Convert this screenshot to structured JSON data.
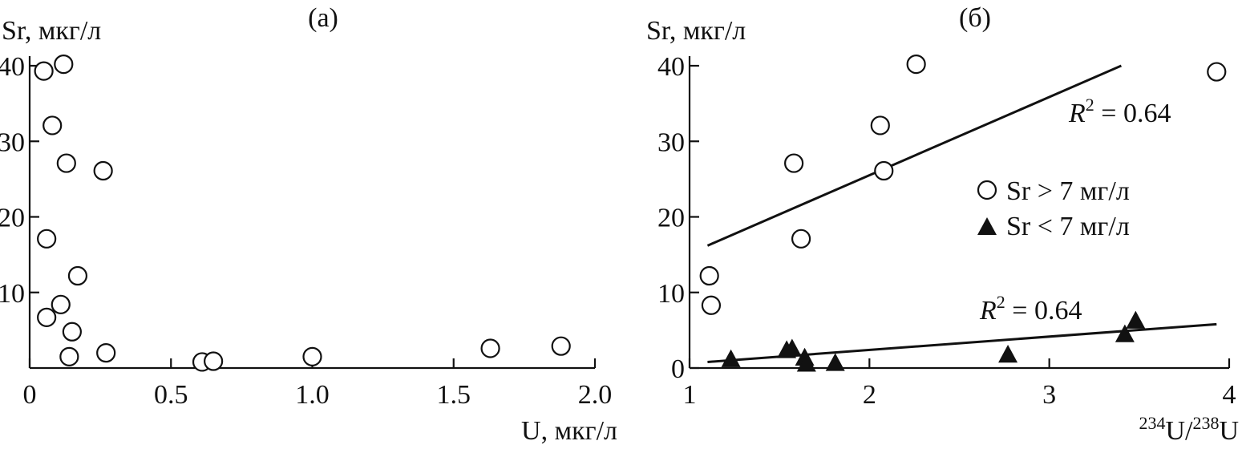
{
  "chart_data": [
    {
      "id": "a",
      "type": "scatter",
      "title": "(а)",
      "xlabel": "U, мкг/л",
      "ylabel": "Sr, мкг/л",
      "xlim": [
        0,
        2.0
      ],
      "ylim": [
        0,
        40
      ],
      "xticks": [
        0,
        0.5,
        1.0,
        1.5,
        2.0
      ],
      "xtick_labels": [
        "0",
        "0.5",
        "1.0",
        "1.5",
        "2.0"
      ],
      "yticks": [
        10,
        20,
        30,
        40
      ],
      "ytick_labels": [
        "10",
        "20",
        "30",
        "40"
      ],
      "series": [
        {
          "marker": "open-circle",
          "points": [
            {
              "x": 0.05,
              "y": 39.3
            },
            {
              "x": 0.12,
              "y": 40.2
            },
            {
              "x": 0.08,
              "y": 32.1
            },
            {
              "x": 0.13,
              "y": 27.1
            },
            {
              "x": 0.26,
              "y": 26.1
            },
            {
              "x": 0.06,
              "y": 17.1
            },
            {
              "x": 0.17,
              "y": 12.2
            },
            {
              "x": 0.11,
              "y": 8.4
            },
            {
              "x": 0.06,
              "y": 6.7
            },
            {
              "x": 0.15,
              "y": 4.8
            },
            {
              "x": 0.14,
              "y": 1.5
            },
            {
              "x": 0.27,
              "y": 2.0
            },
            {
              "x": 0.61,
              "y": 0.8
            },
            {
              "x": 0.65,
              "y": 0.9
            },
            {
              "x": 1.0,
              "y": 1.5
            },
            {
              "x": 1.63,
              "y": 2.6
            },
            {
              "x": 1.88,
              "y": 2.9
            }
          ]
        }
      ]
    },
    {
      "id": "b",
      "type": "scatter",
      "title": "(б)",
      "xlabel": "U/U",
      "xlabel_sup1": "234",
      "xlabel_sup2": "238",
      "ylabel": "Sr, мкг/л",
      "xlim": [
        1,
        4
      ],
      "ylim": [
        0,
        40
      ],
      "xticks": [
        1,
        2,
        3,
        4
      ],
      "xtick_labels": [
        "1",
        "2",
        "3",
        "4"
      ],
      "yticks": [
        0,
        10,
        20,
        30,
        40
      ],
      "ytick_labels": [
        "0",
        "10",
        "20",
        "30",
        "40"
      ],
      "legend_position": "right-middle",
      "series": [
        {
          "name": "Sr > 7 мг/л",
          "marker": "open-circle",
          "points": [
            {
              "x": 3.93,
              "y": 39.2
            },
            {
              "x": 2.26,
              "y": 40.2
            },
            {
              "x": 2.06,
              "y": 32.1
            },
            {
              "x": 1.58,
              "y": 27.1
            },
            {
              "x": 2.08,
              "y": 26.1
            },
            {
              "x": 1.62,
              "y": 17.1
            },
            {
              "x": 1.11,
              "y": 12.2
            },
            {
              "x": 1.12,
              "y": 8.3
            }
          ],
          "fit": {
            "x": [
              1.1,
              3.4
            ],
            "y": [
              16.2,
              40.0
            ],
            "label_r": "R",
            "label_sup": "2",
            "label_rest": " = 0.64"
          }
        },
        {
          "name": "Sr < 7 мг/л",
          "marker": "filled-triangle",
          "points": [
            {
              "x": 1.23,
              "y": 1.2
            },
            {
              "x": 1.54,
              "y": 2.4
            },
            {
              "x": 1.57,
              "y": 2.6
            },
            {
              "x": 1.64,
              "y": 1.4
            },
            {
              "x": 1.65,
              "y": 0.6
            },
            {
              "x": 1.81,
              "y": 0.7
            },
            {
              "x": 2.77,
              "y": 1.8
            },
            {
              "x": 3.42,
              "y": 4.5
            },
            {
              "x": 3.48,
              "y": 6.3
            }
          ],
          "fit": {
            "x": [
              1.1,
              3.93
            ],
            "y": [
              0.8,
              5.8
            ],
            "label_r": "R",
            "label_sup": "2",
            "label_rest": " = 0.64"
          }
        }
      ]
    }
  ]
}
